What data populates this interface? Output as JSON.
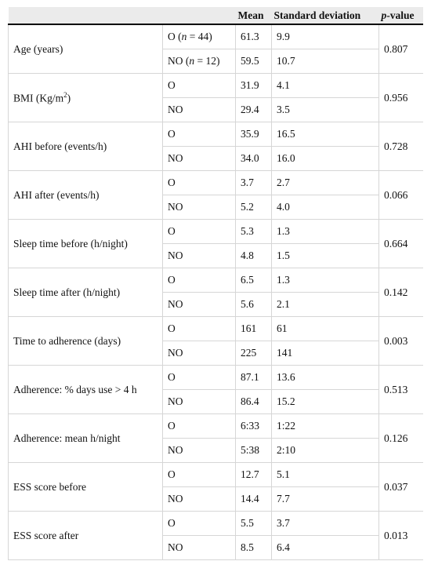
{
  "table": {
    "header": {
      "mean": "Mean",
      "sd": "Standard deviation",
      "p_value": [
        "p",
        "-value"
      ]
    },
    "rows": [
      {
        "label": "Age (years)",
        "groups": [
          {
            "label": [
              "O (",
              "n",
              " = 44)"
            ],
            "mean": "61.3",
            "sd": "9.9"
          },
          {
            "label": [
              "NO (",
              "n",
              " = 12)"
            ],
            "mean": "59.5",
            "sd": "10.7"
          }
        ],
        "p": "0.807"
      },
      {
        "label": [
          "BMI (Kg/m",
          "2",
          ")"
        ],
        "groups": [
          {
            "label": "O",
            "mean": "31.9",
            "sd": "4.1"
          },
          {
            "label": "NO",
            "mean": "29.4",
            "sd": "3.5"
          }
        ],
        "p": "0.956"
      },
      {
        "label": "AHI before (events/h)",
        "groups": [
          {
            "label": "O",
            "mean": "35.9",
            "sd": "16.5"
          },
          {
            "label": "NO",
            "mean": "34.0",
            "sd": "16.0"
          }
        ],
        "p": "0.728"
      },
      {
        "label": "AHI after (events/h)",
        "groups": [
          {
            "label": "O",
            "mean": "3.7",
            "sd": "2.7"
          },
          {
            "label": "NO",
            "mean": "5.2",
            "sd": "4.0"
          }
        ],
        "p": "0.066"
      },
      {
        "label": "Sleep time before (h/night)",
        "groups": [
          {
            "label": "O",
            "mean": "5.3",
            "sd": "1.3"
          },
          {
            "label": "NO",
            "mean": "4.8",
            "sd": "1.5"
          }
        ],
        "p": "0.664"
      },
      {
        "label": "Sleep time after (h/night)",
        "groups": [
          {
            "label": "O",
            "mean": "6.5",
            "sd": "1.3"
          },
          {
            "label": "NO",
            "mean": "5.6",
            "sd": "2.1"
          }
        ],
        "p": "0.142"
      },
      {
        "label": "Time to adherence (days)",
        "groups": [
          {
            "label": "O",
            "mean": "161",
            "sd": "61"
          },
          {
            "label": "NO",
            "mean": "225",
            "sd": "141"
          }
        ],
        "p": "0.003"
      },
      {
        "label": "Adherence: % days use > 4 h",
        "groups": [
          {
            "label": "O",
            "mean": "87.1",
            "sd": "13.6"
          },
          {
            "label": "NO",
            "mean": "86.4",
            "sd": "15.2"
          }
        ],
        "p": "0.513"
      },
      {
        "label": "Adherence: mean h/night",
        "groups": [
          {
            "label": "O",
            "mean": "6:33",
            "sd": "1:22"
          },
          {
            "label": "NO",
            "mean": "5:38",
            "sd": "2:10"
          }
        ],
        "p": "0.126"
      },
      {
        "label": "ESS score before",
        "groups": [
          {
            "label": "O",
            "mean": "12.7",
            "sd": "5.1"
          },
          {
            "label": "NO",
            "mean": "14.4",
            "sd": "7.7"
          }
        ],
        "p": "0.037"
      },
      {
        "label": "ESS score after",
        "groups": [
          {
            "label": "O",
            "mean": "5.5",
            "sd": "3.7"
          },
          {
            "label": "NO",
            "mean": "8.5",
            "sd": "6.4"
          }
        ],
        "p": "0.013"
      }
    ]
  }
}
